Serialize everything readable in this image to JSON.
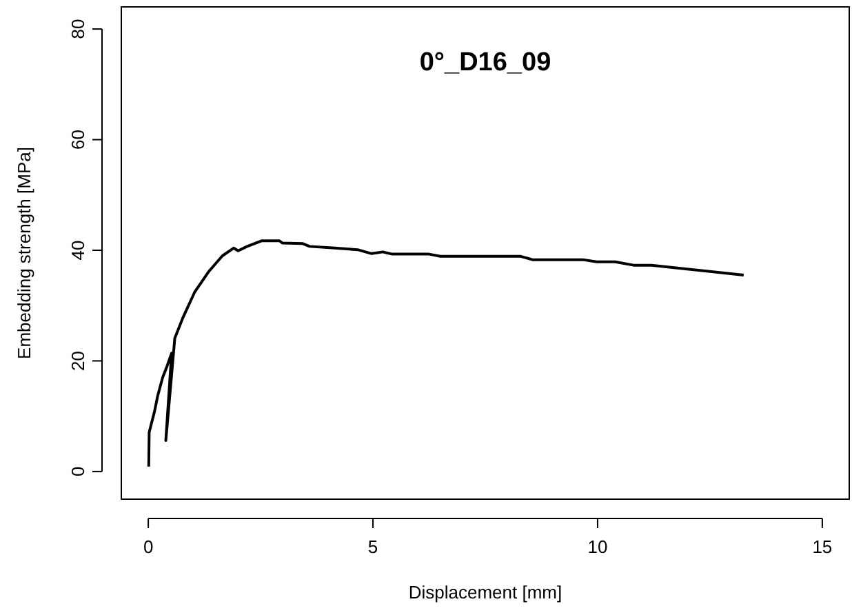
{
  "chart_data": {
    "type": "line",
    "title": "0°_D16_09",
    "xlabel": "Displacement [mm]",
    "ylabel": "Embedding strength [MPa]",
    "xlim": [
      -0.6,
      15.6
    ],
    "ylim": [
      -5,
      84
    ],
    "xticks": [
      0,
      5,
      10,
      15
    ],
    "yticks": [
      0,
      20,
      40,
      60,
      80
    ],
    "line_style": "solid",
    "marker": "none",
    "series": [
      {
        "color": "#000000",
        "x": [
          0.01,
          0.02,
          0.14,
          0.21,
          0.32,
          0.42,
          0.52,
          0.39,
          0.47,
          0.55,
          0.59,
          0.77,
          1.03,
          1.34,
          1.65,
          1.9,
          2.0,
          2.2,
          2.52,
          2.92,
          2.99,
          3.44,
          3.59,
          4.15,
          4.66,
          4.97,
          5.22,
          5.43,
          6.25,
          6.5,
          8.29,
          8.55,
          9.67,
          9.98,
          10.39,
          10.8,
          11.2,
          13.25
        ],
        "values": [
          0.9,
          7.1,
          10.9,
          13.7,
          17,
          19.1,
          21.4,
          5.6,
          12.9,
          20.4,
          24.1,
          27.8,
          32.4,
          36.1,
          39,
          40.4,
          39.9,
          40.7,
          41.7,
          41.7,
          41.3,
          41.2,
          40.7,
          40.4,
          40.1,
          39.4,
          39.7,
          39.3,
          39.3,
          38.9,
          38.9,
          38.3,
          38.3,
          37.9,
          37.9,
          37.3,
          37.3,
          35.5
        ]
      }
    ]
  }
}
